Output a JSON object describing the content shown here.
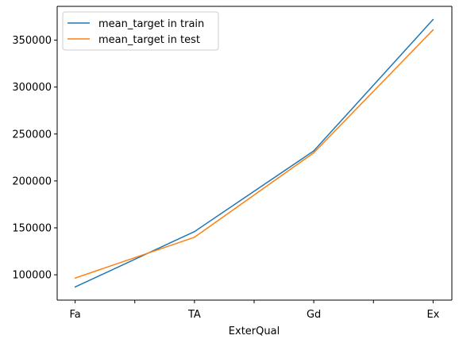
{
  "chart_data": {
    "type": "line",
    "categories": [
      "Fa",
      "TA",
      "Gd",
      "Ex"
    ],
    "x_ticks": [
      "Fa",
      "",
      "TA",
      "",
      "Gd",
      "",
      "Ex"
    ],
    "xlabel": "ExterQual",
    "ylabel": "",
    "title": "",
    "ylim": [
      73000,
      386000
    ],
    "yticks": [
      100000,
      150000,
      200000,
      250000,
      300000,
      350000
    ],
    "ytick_labels": [
      "100000",
      "150000",
      "200000",
      "250000",
      "300000",
      "350000"
    ],
    "grid": false,
    "legend_position": "top-left",
    "series": [
      {
        "name": "mean_target in train",
        "color": "#1f77b4",
        "values": [
          87000,
          146000,
          232000,
          372000
        ]
      },
      {
        "name": "mean_target in test",
        "color": "#ff7f0e",
        "values": [
          96500,
          140000,
          230000,
          361000
        ]
      }
    ]
  }
}
